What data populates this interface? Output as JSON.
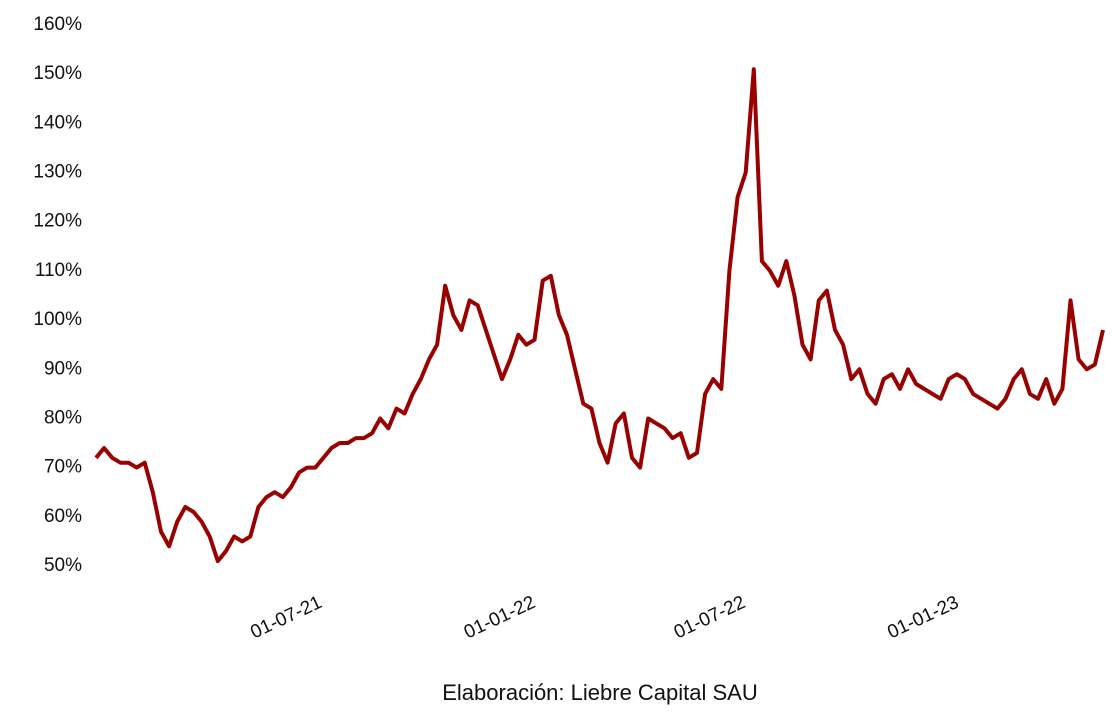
{
  "chart_data": {
    "type": "line",
    "caption": "Elaboración: Liebre Capital SAU",
    "x": [
      "2021-01-01",
      "2021-01-08",
      "2021-01-15",
      "2021-01-22",
      "2021-01-29",
      "2021-02-05",
      "2021-02-12",
      "2021-02-19",
      "2021-02-26",
      "2021-03-05",
      "2021-03-12",
      "2021-03-19",
      "2021-03-26",
      "2021-04-02",
      "2021-04-09",
      "2021-04-16",
      "2021-04-23",
      "2021-04-30",
      "2021-05-07",
      "2021-05-14",
      "2021-05-21",
      "2021-05-28",
      "2021-06-04",
      "2021-06-11",
      "2021-06-18",
      "2021-06-25",
      "2021-07-02",
      "2021-07-09",
      "2021-07-16",
      "2021-07-23",
      "2021-07-30",
      "2021-08-06",
      "2021-08-13",
      "2021-08-20",
      "2021-08-27",
      "2021-09-03",
      "2021-09-10",
      "2021-09-17",
      "2021-09-24",
      "2021-10-01",
      "2021-10-08",
      "2021-10-15",
      "2021-10-22",
      "2021-10-29",
      "2021-11-05",
      "2021-11-12",
      "2021-11-19",
      "2021-11-26",
      "2021-12-03",
      "2021-12-10",
      "2021-12-17",
      "2021-12-24",
      "2021-12-31",
      "2022-01-07",
      "2022-01-14",
      "2022-01-21",
      "2022-01-28",
      "2022-02-04",
      "2022-02-11",
      "2022-02-18",
      "2022-02-25",
      "2022-03-04",
      "2022-03-11",
      "2022-03-18",
      "2022-03-25",
      "2022-04-01",
      "2022-04-08",
      "2022-04-15",
      "2022-04-22",
      "2022-04-29",
      "2022-05-06",
      "2022-05-13",
      "2022-05-20",
      "2022-05-27",
      "2022-06-03",
      "2022-06-10",
      "2022-06-17",
      "2022-06-24",
      "2022-07-01",
      "2022-07-08",
      "2022-07-15",
      "2022-07-22",
      "2022-07-29",
      "2022-08-05",
      "2022-08-12",
      "2022-08-19",
      "2022-08-26",
      "2022-09-02",
      "2022-09-09",
      "2022-09-16",
      "2022-09-23",
      "2022-09-30",
      "2022-10-07",
      "2022-10-14",
      "2022-10-21",
      "2022-10-28",
      "2022-11-04",
      "2022-11-11",
      "2022-11-18",
      "2022-11-25",
      "2022-12-02",
      "2022-12-09",
      "2022-12-16",
      "2022-12-23",
      "2022-12-30",
      "2023-01-06",
      "2023-01-13",
      "2023-01-20",
      "2023-01-27",
      "2023-02-03",
      "2023-02-10",
      "2023-02-17",
      "2023-02-24",
      "2023-03-03",
      "2023-03-10",
      "2023-03-17",
      "2023-03-24",
      "2023-03-31",
      "2023-04-07",
      "2023-04-14",
      "2023-04-21",
      "2023-04-28",
      "2023-05-05",
      "2023-05-12",
      "2023-05-19"
    ],
    "series": [
      {
        "color": "#990000",
        "values": [
          72,
          74,
          72,
          71,
          71,
          70,
          71,
          65,
          57,
          54,
          59,
          62,
          61,
          59,
          56,
          51,
          53,
          56,
          55,
          56,
          62,
          64,
          65,
          64,
          66,
          69,
          70,
          70,
          72,
          74,
          75,
          75,
          76,
          76,
          77,
          80,
          78,
          82,
          81,
          85,
          88,
          92,
          95,
          107,
          101,
          98,
          104,
          103,
          98,
          93,
          88,
          92,
          97,
          95,
          96,
          108,
          109,
          101,
          97,
          90,
          83,
          82,
          75,
          71,
          79,
          81,
          72,
          70,
          80,
          79,
          78,
          76,
          77,
          72,
          73,
          85,
          88,
          86,
          110,
          125,
          130,
          151,
          112,
          110,
          107,
          112,
          105,
          95,
          92,
          104,
          106,
          98,
          95,
          88,
          90,
          85,
          83,
          88,
          89,
          86,
          90,
          87,
          86,
          85,
          84,
          88,
          89,
          88,
          85,
          84,
          83,
          82,
          84,
          88,
          90,
          85,
          84,
          88,
          83,
          86,
          104,
          92,
          90,
          91,
          98
        ]
      }
    ],
    "xlim": [
      "2021-01-01",
      "2023-05-19"
    ],
    "xticks": [
      {
        "value": "2021-07-01",
        "label": "01-07-21"
      },
      {
        "value": "2022-01-01",
        "label": "01-01-22"
      },
      {
        "value": "2022-07-01",
        "label": "01-07-22"
      },
      {
        "value": "2023-01-01",
        "label": "01-01-23"
      }
    ],
    "ylim": [
      50,
      160
    ],
    "yticks": [
      {
        "value": 50,
        "label": "50%"
      },
      {
        "value": 60,
        "label": "60%"
      },
      {
        "value": 70,
        "label": "70%"
      },
      {
        "value": 80,
        "label": "80%"
      },
      {
        "value": 90,
        "label": "90%"
      },
      {
        "value": 100,
        "label": "100%"
      },
      {
        "value": 110,
        "label": "110%"
      },
      {
        "value": 120,
        "label": "120%"
      },
      {
        "value": 130,
        "label": "130%"
      },
      {
        "value": 140,
        "label": "140%"
      },
      {
        "value": 150,
        "label": "150%"
      },
      {
        "value": 160,
        "label": "160%"
      }
    ]
  }
}
